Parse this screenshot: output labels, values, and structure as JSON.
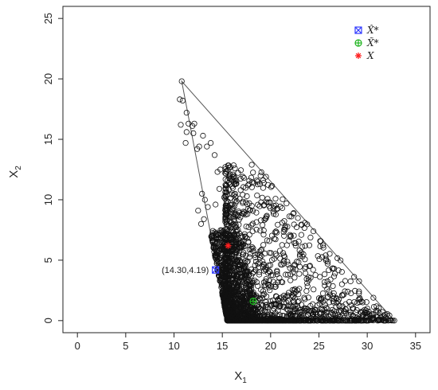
{
  "chart_data": {
    "type": "scatter",
    "title": "",
    "xlabel": "X",
    "xlabel_sub": "1",
    "ylabel": "X",
    "ylabel_sub": "2",
    "xlim": [
      -1.5,
      36.5
    ],
    "ylim": [
      -1,
      26
    ],
    "x_ticks": [
      0,
      5,
      10,
      15,
      20,
      25,
      30,
      35
    ],
    "y_ticks": [
      0,
      5,
      10,
      15,
      20,
      25
    ],
    "x_tick_labels": [
      "0",
      "5",
      "10",
      "15",
      "20",
      "25",
      "30",
      "35"
    ],
    "y_tick_labels": [
      "0",
      "5",
      "10",
      "15",
      "20",
      "25"
    ],
    "grid": false,
    "legend_position": "top-right",
    "hull_vertices": [
      [
        10.8,
        19.8
      ],
      [
        15.5,
        0
      ],
      [
        32.8,
        0
      ]
    ],
    "sample_points": {
      "marker": "open-circle",
      "count_approx": 3000,
      "region": "convex hull of (10.8,19.8), (15.5,0), (32.8,0); densest near x=15.5–18.5, y=0–7",
      "representative": [
        [
          10.8,
          19.8
        ],
        [
          10.6,
          18.3
        ],
        [
          10.9,
          18.2
        ],
        [
          11.3,
          17.2
        ],
        [
          10.7,
          16.2
        ],
        [
          11.5,
          16.3
        ],
        [
          11.9,
          16.1
        ],
        [
          12.1,
          16.3
        ],
        [
          11.3,
          15.6
        ],
        [
          12.0,
          15.5
        ],
        [
          11.2,
          14.7
        ],
        [
          12.4,
          14.2
        ],
        [
          12.6,
          14.4
        ],
        [
          13.0,
          15.3
        ],
        [
          13.4,
          14.4
        ],
        [
          13.8,
          14.7
        ],
        [
          14.2,
          13.7
        ],
        [
          14.8,
          12.5
        ],
        [
          14.5,
          12.3
        ],
        [
          15.3,
          12.2
        ],
        [
          15.8,
          12.1
        ],
        [
          16.4,
          11.3
        ],
        [
          16.9,
          10.8
        ],
        [
          17.8,
          11.3
        ],
        [
          18.9,
          11.3
        ],
        [
          19.3,
          11.4
        ],
        [
          14.7,
          10.9
        ],
        [
          15.2,
          10.2
        ],
        [
          12.9,
          10.5
        ],
        [
          13.2,
          10.0
        ],
        [
          13.5,
          9.4
        ],
        [
          12.5,
          9.1
        ],
        [
          13.1,
          8.4
        ],
        [
          12.8,
          8.0
        ],
        [
          14.3,
          9.6
        ],
        [
          20.3,
          9.3
        ],
        [
          21.2,
          8.1
        ],
        [
          21.5,
          7.7
        ],
        [
          22.1,
          7.0
        ],
        [
          21.9,
          6.6
        ],
        [
          22.6,
          6.2
        ],
        [
          23.0,
          5.8
        ],
        [
          23.3,
          5.3
        ],
        [
          24.0,
          4.5
        ],
        [
          24.4,
          4.2
        ],
        [
          25.7,
          5.4
        ],
        [
          25.9,
          4.7
        ],
        [
          26.2,
          3.4
        ],
        [
          25.6,
          2.9
        ],
        [
          26.0,
          3.0
        ],
        [
          26.8,
          1.8
        ],
        [
          27.1,
          1.2
        ],
        [
          27.6,
          0.8
        ],
        [
          28.3,
          0.5
        ],
        [
          29.4,
          1.6
        ],
        [
          29.3,
          0.0
        ],
        [
          28.9,
          0.0
        ],
        [
          30.1,
          0.0
        ],
        [
          32.8,
          0.0
        ]
      ]
    },
    "series": [
      {
        "name": "X̂*",
        "marker": "square-x",
        "color": "#2f39ff",
        "x": 14.3,
        "y": 4.19,
        "label": "(14.30,4.19)"
      },
      {
        "name": "X̃*",
        "marker": "circle-plus",
        "color": "#1db31d",
        "x": 18.2,
        "y": 1.6
      },
      {
        "name": "X",
        "marker": "asterisk",
        "color": "#ff2020",
        "x": 15.6,
        "y": 6.2
      }
    ]
  }
}
